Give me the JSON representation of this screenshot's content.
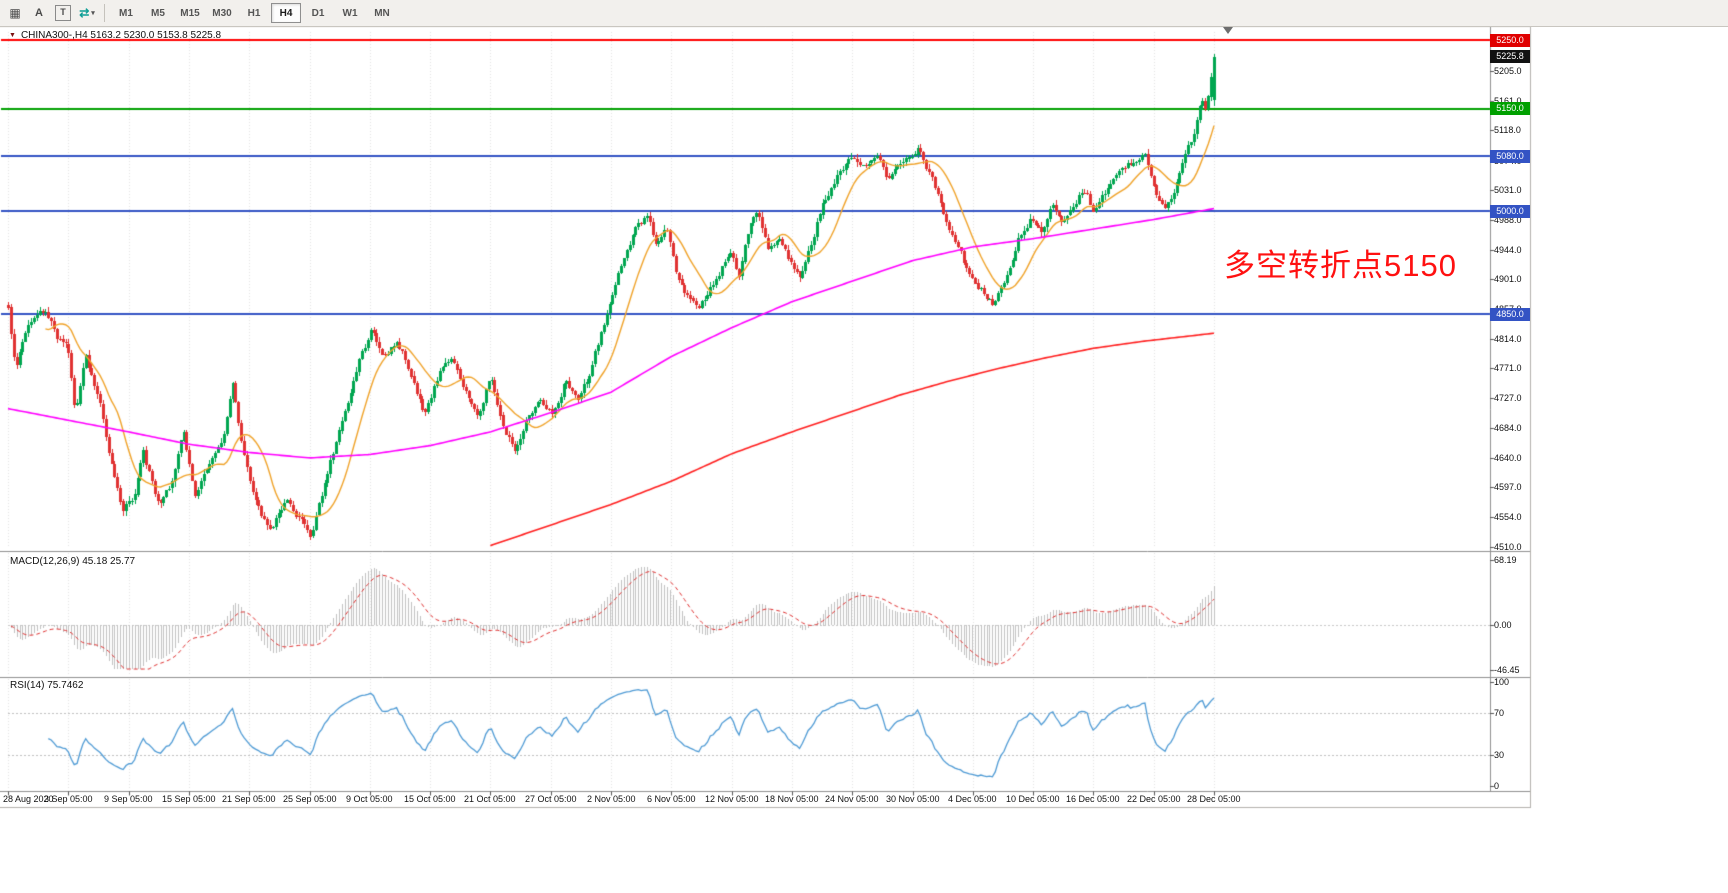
{
  "toolbar": {
    "icons": {
      "grid": "▦",
      "cursor": "A",
      "text": "T",
      "arrows": "⇄",
      "caret": "▾"
    },
    "timeframes": [
      {
        "label": "M1",
        "active": false
      },
      {
        "label": "M5",
        "active": false
      },
      {
        "label": "M15",
        "active": false
      },
      {
        "label": "M30",
        "active": false
      },
      {
        "label": "H1",
        "active": false
      },
      {
        "label": "H4",
        "active": true
      },
      {
        "label": "D1",
        "active": false
      },
      {
        "label": "W1",
        "active": false
      },
      {
        "label": "MN",
        "active": false
      }
    ]
  },
  "symbol_info": {
    "marker": "▼",
    "text": "CHINA300-,H4  5163.2 5230.0 5153.8 5225.8"
  },
  "annotation": {
    "text": "多空转折点5150",
    "color": "#ff1111"
  },
  "indicators": {
    "macd": {
      "label": "MACD(12,26,9) 45.18 25.77",
      "values": {
        "macd": 45.18,
        "signal": 25.77
      },
      "scale": [
        {
          "label": "68.19",
          "value": 68.19
        },
        {
          "label": "0.00",
          "value": 0
        },
        {
          "label": "-46.45",
          "value": -46.45
        }
      ]
    },
    "rsi": {
      "label": "RSI(14) 75.7462",
      "value": 75.7462,
      "scale": [
        {
          "label": "100",
          "value": 100
        },
        {
          "label": "70",
          "value": 70
        },
        {
          "label": "30",
          "value": 30
        },
        {
          "label": "0",
          "value": 0
        }
      ],
      "levels": [
        70,
        30
      ]
    }
  },
  "price_scale": {
    "ticks": [
      {
        "label": "5205.0",
        "price": 5205
      },
      {
        "label": "5161.0",
        "price": 5161
      },
      {
        "label": "5118.0",
        "price": 5118
      },
      {
        "label": "5074.0",
        "price": 5074
      },
      {
        "label": "5031.0",
        "price": 5031
      },
      {
        "label": "4988.0",
        "price": 4988
      },
      {
        "label": "4944.0",
        "price": 4944
      },
      {
        "label": "4901.0",
        "price": 4901
      },
      {
        "label": "4857.0",
        "price": 4857
      },
      {
        "label": "4814.0",
        "price": 4814
      },
      {
        "label": "4771.0",
        "price": 4771
      },
      {
        "label": "4727.0",
        "price": 4727
      },
      {
        "label": "4684.0",
        "price": 4684
      },
      {
        "label": "4640.0",
        "price": 4640
      },
      {
        "label": "4597.0",
        "price": 4597
      },
      {
        "label": "4554.0",
        "price": 4554
      },
      {
        "label": "4510.0",
        "price": 4510
      }
    ],
    "badges": [
      {
        "label": "5250.0",
        "price": 5250,
        "color": "#e00000"
      },
      {
        "label": "5225.8",
        "price": 5225.8,
        "color": "#111111"
      },
      {
        "label": "5150.0",
        "price": 5150,
        "color": "#00a000"
      },
      {
        "label": "5080.0",
        "price": 5080,
        "color": "#3353c4"
      },
      {
        "label": "5000.0",
        "price": 5000,
        "color": "#3353c4"
      },
      {
        "label": "4850.0",
        "price": 4850,
        "color": "#3353c4"
      }
    ]
  },
  "date_axis": [
    "28 Aug 2020",
    "3 Sep 05:00",
    "9 Sep 05:00",
    "15 Sep 05:00",
    "21 Sep 05:00",
    "25 Sep 05:00",
    "9 Oct 05:00",
    "15 Oct 05:00",
    "21 Oct 05:00",
    "27 Oct 05:00",
    "2 Nov 05:00",
    "6 Nov 05:00",
    "12 Nov 05:00",
    "18 Nov 05:00",
    "24 Nov 05:00",
    "30 Nov 05:00",
    "4 Dec 05:00",
    "10 Dec 05:00",
    "16 Dec 05:00",
    "22 Dec 05:00",
    "28 Dec 05:00"
  ],
  "chart_data": {
    "type": "candlestick",
    "symbol": "CHINA300-",
    "timeframe": "H4",
    "ohlc_current": {
      "open": 5163.2,
      "high": 5230.0,
      "low": 5153.8,
      "close": 5225.8
    },
    "ylim": [
      4510,
      5250
    ],
    "bars": 420,
    "macd_range": [
      -46.45,
      68.19
    ],
    "rsi_range": [
      0,
      100
    ],
    "horizontal_lines": [
      {
        "price": 5250,
        "color": "#ff0000",
        "width": 2
      },
      {
        "price": 5150,
        "color": "#00a000",
        "width": 2
      },
      {
        "price": 5080,
        "color": "#3353c4",
        "width": 2
      },
      {
        "price": 5000,
        "color": "#3353c4",
        "width": 2
      },
      {
        "price": 4850,
        "color": "#3353c4",
        "width": 2
      }
    ],
    "colors": {
      "up": "#00a650",
      "down": "#e03232",
      "ma_fast": "#f0a32a",
      "ma_mid": "#ff00ff",
      "ma_slow": "#ff1f1f",
      "macd_hist": "#c2c2c2",
      "macd_signal": "#e03030",
      "rsi": "#4f9bd5"
    },
    "ma_fast_period": 14,
    "price_path_anchors": [
      [
        0.0,
        4858
      ],
      [
        0.006,
        4775
      ],
      [
        0.015,
        4830
      ],
      [
        0.03,
        4856
      ],
      [
        0.042,
        4812
      ],
      [
        0.05,
        4796
      ],
      [
        0.056,
        4706
      ],
      [
        0.064,
        4790
      ],
      [
        0.075,
        4732
      ],
      [
        0.085,
        4640
      ],
      [
        0.095,
        4562
      ],
      [
        0.105,
        4585
      ],
      [
        0.112,
        4645
      ],
      [
        0.125,
        4570
      ],
      [
        0.135,
        4600
      ],
      [
        0.145,
        4680
      ],
      [
        0.155,
        4590
      ],
      [
        0.165,
        4625
      ],
      [
        0.178,
        4660
      ],
      [
        0.186,
        4746
      ],
      [
        0.196,
        4640
      ],
      [
        0.206,
        4572
      ],
      [
        0.218,
        4532
      ],
      [
        0.23,
        4580
      ],
      [
        0.243,
        4548
      ],
      [
        0.252,
        4526
      ],
      [
        0.262,
        4600
      ],
      [
        0.275,
        4682
      ],
      [
        0.29,
        4780
      ],
      [
        0.302,
        4826
      ],
      [
        0.312,
        4790
      ],
      [
        0.322,
        4812
      ],
      [
        0.335,
        4762
      ],
      [
        0.345,
        4702
      ],
      [
        0.357,
        4762
      ],
      [
        0.368,
        4792
      ],
      [
        0.38,
        4736
      ],
      [
        0.39,
        4702
      ],
      [
        0.4,
        4758
      ],
      [
        0.41,
        4692
      ],
      [
        0.42,
        4650
      ],
      [
        0.432,
        4702
      ],
      [
        0.443,
        4722
      ],
      [
        0.452,
        4702
      ],
      [
        0.462,
        4752
      ],
      [
        0.472,
        4722
      ],
      [
        0.482,
        4762
      ],
      [
        0.492,
        4822
      ],
      [
        0.502,
        4882
      ],
      [
        0.512,
        4942
      ],
      [
        0.522,
        4978
      ],
      [
        0.53,
        4996
      ],
      [
        0.538,
        4948
      ],
      [
        0.546,
        4976
      ],
      [
        0.554,
        4912
      ],
      [
        0.564,
        4876
      ],
      [
        0.572,
        4856
      ],
      [
        0.58,
        4882
      ],
      [
        0.59,
        4912
      ],
      [
        0.598,
        4942
      ],
      [
        0.606,
        4906
      ],
      [
        0.614,
        4976
      ],
      [
        0.622,
        4996
      ],
      [
        0.63,
        4942
      ],
      [
        0.64,
        4962
      ],
      [
        0.648,
        4922
      ],
      [
        0.656,
        4906
      ],
      [
        0.665,
        4946
      ],
      [
        0.675,
        5012
      ],
      [
        0.688,
        5056
      ],
      [
        0.7,
        5082
      ],
      [
        0.71,
        5062
      ],
      [
        0.72,
        5084
      ],
      [
        0.73,
        5046
      ],
      [
        0.738,
        5066
      ],
      [
        0.747,
        5082
      ],
      [
        0.755,
        5092
      ],
      [
        0.765,
        5052
      ],
      [
        0.775,
        5002
      ],
      [
        0.785,
        4956
      ],
      [
        0.795,
        4916
      ],
      [
        0.805,
        4890
      ],
      [
        0.817,
        4862
      ],
      [
        0.828,
        4902
      ],
      [
        0.838,
        4958
      ],
      [
        0.848,
        4992
      ],
      [
        0.856,
        4966
      ],
      [
        0.865,
        5008
      ],
      [
        0.875,
        4986
      ],
      [
        0.885,
        5016
      ],
      [
        0.893,
        5032
      ],
      [
        0.9,
        5000
      ],
      [
        0.908,
        5024
      ],
      [
        0.917,
        5044
      ],
      [
        0.926,
        5062
      ],
      [
        0.934,
        5074
      ],
      [
        0.942,
        5088
      ],
      [
        0.951,
        5024
      ],
      [
        0.959,
        4998
      ],
      [
        0.967,
        5024
      ],
      [
        0.975,
        5072
      ],
      [
        0.983,
        5112
      ],
      [
        0.99,
        5162
      ],
      [
        0.994,
        5150
      ],
      [
        1.0,
        5225.8
      ]
    ],
    "ma_mid_anchors": [
      [
        0.0,
        4712
      ],
      [
        0.05,
        4695
      ],
      [
        0.1,
        4678
      ],
      [
        0.15,
        4660
      ],
      [
        0.2,
        4648
      ],
      [
        0.25,
        4640
      ],
      [
        0.3,
        4645
      ],
      [
        0.35,
        4658
      ],
      [
        0.4,
        4678
      ],
      [
        0.45,
        4706
      ],
      [
        0.5,
        4736
      ],
      [
        0.55,
        4788
      ],
      [
        0.6,
        4830
      ],
      [
        0.65,
        4868
      ],
      [
        0.7,
        4898
      ],
      [
        0.75,
        4928
      ],
      [
        0.8,
        4948
      ],
      [
        0.85,
        4960
      ],
      [
        0.9,
        4974
      ],
      [
        0.95,
        4988
      ],
      [
        1.0,
        5004
      ]
    ],
    "ma_slow_anchors": [
      [
        0.4,
        4512
      ],
      [
        0.45,
        4542
      ],
      [
        0.5,
        4572
      ],
      [
        0.55,
        4606
      ],
      [
        0.6,
        4646
      ],
      [
        0.65,
        4678
      ],
      [
        0.7,
        4708
      ],
      [
        0.74,
        4732
      ],
      [
        0.78,
        4752
      ],
      [
        0.82,
        4770
      ],
      [
        0.86,
        4786
      ],
      [
        0.9,
        4800
      ],
      [
        0.94,
        4810
      ],
      [
        1.0,
        4822
      ]
    ]
  }
}
